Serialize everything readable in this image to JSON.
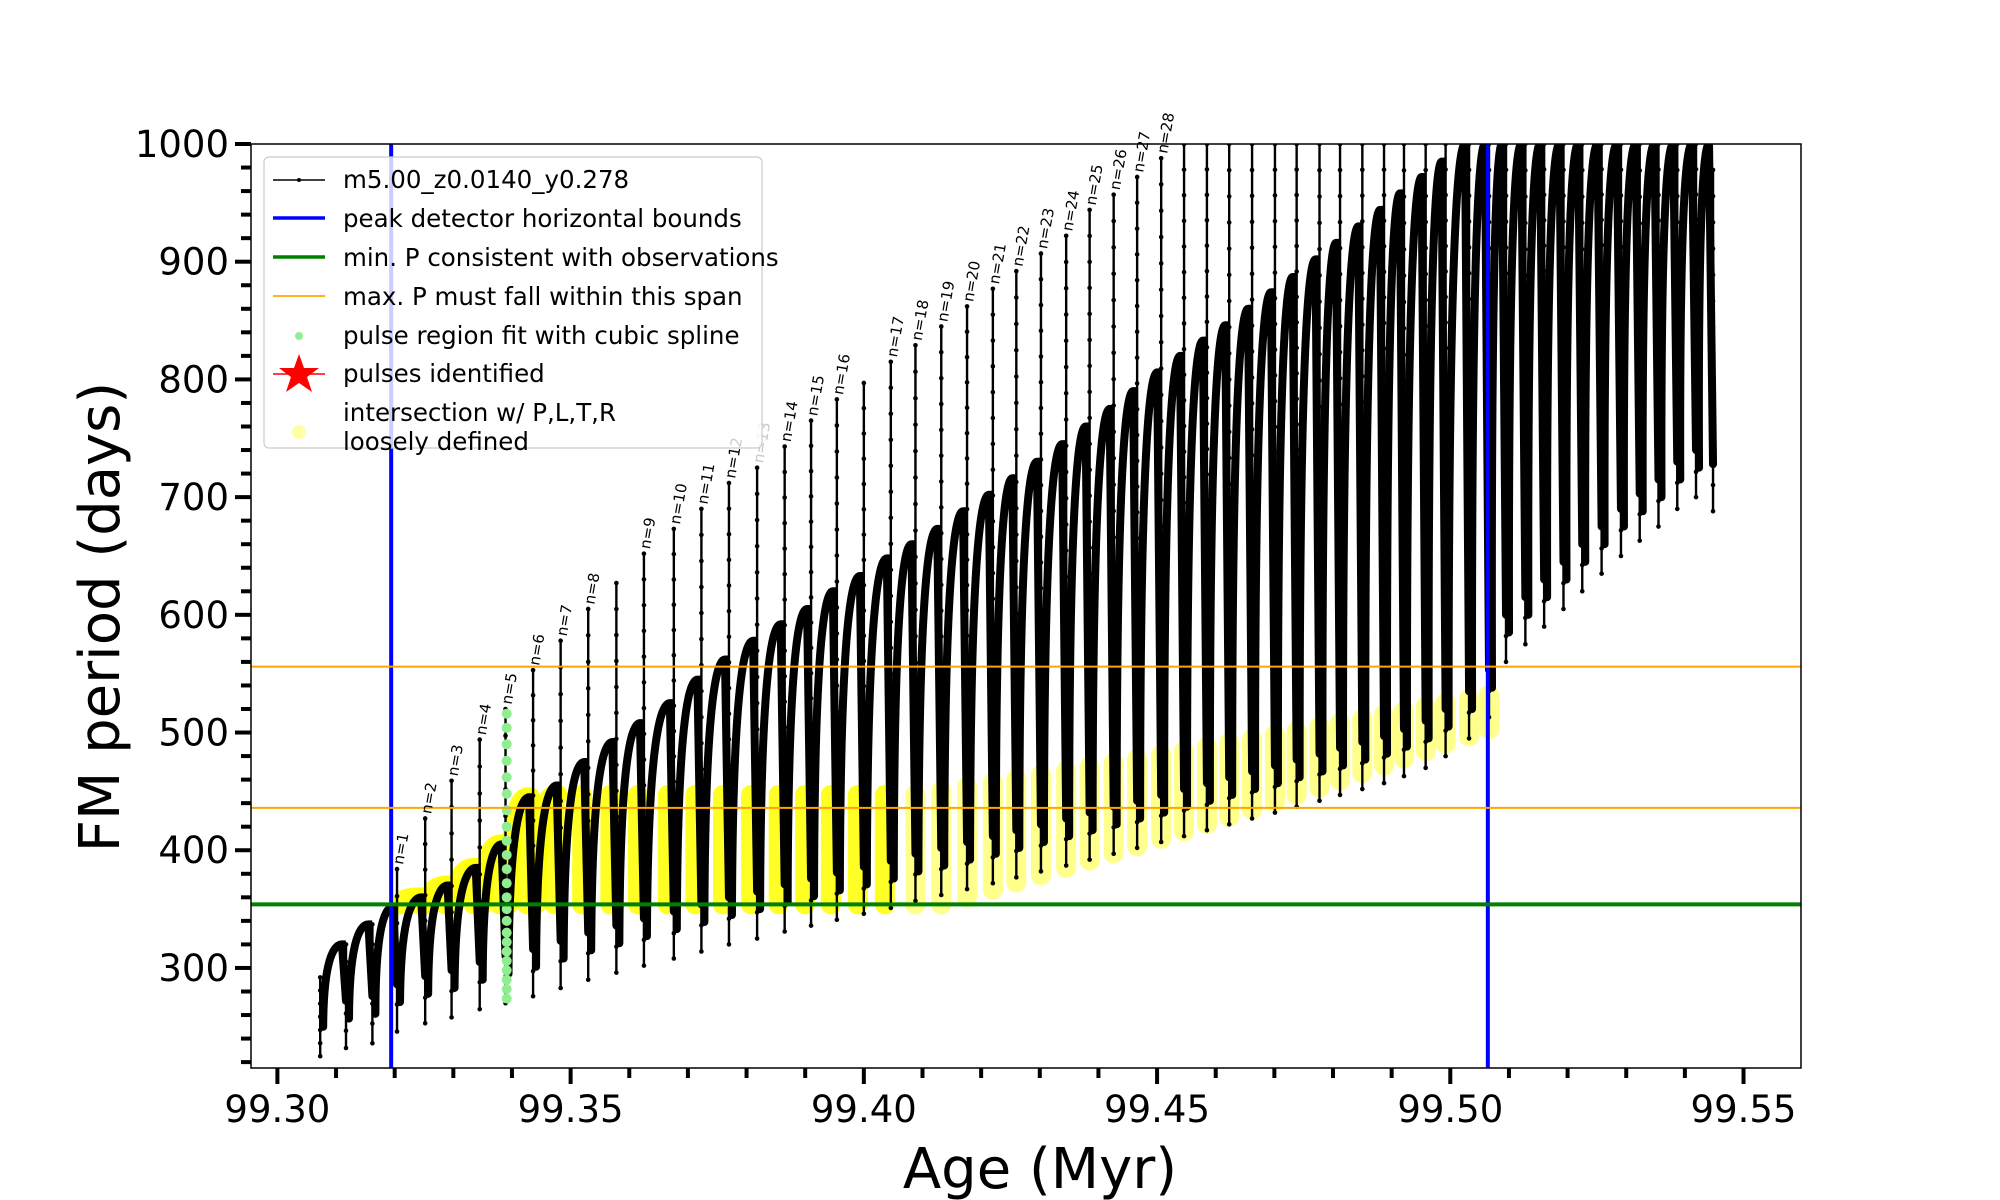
{
  "chart_data": {
    "type": "line",
    "title": "",
    "xlabel": "Age (Myr)",
    "ylabel": "FM period (days)",
    "xlim": [
      99.2955,
      99.5598
    ],
    "ylim": [
      215,
      1000
    ],
    "xticks": [
      "99.30",
      "99.35",
      "99.40",
      "99.45",
      "99.50",
      "99.55"
    ],
    "xtick_values": [
      99.3,
      99.35,
      99.4,
      99.45,
      99.5,
      99.55
    ],
    "yticks": [
      "300",
      "400",
      "500",
      "600",
      "700",
      "800",
      "900",
      "1000"
    ],
    "ytick_values": [
      300,
      400,
      500,
      600,
      700,
      800,
      900,
      1000
    ],
    "x_minor_step": 0.01,
    "y_minor_step": 20,
    "grid": false,
    "legend_placement": "upper-left",
    "legend": [
      {
        "label": "m5.00_z0.0140_y0.278",
        "kind": "line-marker",
        "color": "#000000"
      },
      {
        "label": "peak detector horizontal bounds",
        "kind": "line",
        "color": "#0000ff"
      },
      {
        "label": "min. P consistent with observations",
        "kind": "line",
        "color": "#008000"
      },
      {
        "label": "max. P must fall within this span",
        "kind": "line",
        "color": "#ffa500"
      },
      {
        "label": "pulse region fit with cubic spline",
        "kind": "dot",
        "color": "#90ee90"
      },
      {
        "label": "pulses identified",
        "kind": "star",
        "color": "#ff0000"
      },
      {
        "label": "intersection w/ P,L,T,R",
        "label2": "loosely defined",
        "kind": "circle",
        "color": "#ffff66"
      }
    ],
    "reference_lines": {
      "peak_detector_bounds_age": [
        99.3194,
        99.5064
      ],
      "min_P": 354,
      "max_P_span": [
        436,
        556
      ]
    },
    "colors": {
      "track": "#000000",
      "bounds": "#0000ff",
      "minP": "#008000",
      "maxP": "#ffa500",
      "spline": "#90ee90",
      "intersection": "#ffff00"
    },
    "series": [
      {
        "name": "m5.00_z0.0140_y0.278",
        "description_fields": [
          "age",
          "spike_min_P",
          "spike_peak_P",
          "hump_max_P",
          "label"
        ],
        "start": {
          "age": 99.3073,
          "P": 292
        },
        "cycles": [
          [
            99.3073,
            225,
            292,
            292,
            ""
          ],
          [
            99.3117,
            232,
            320,
            320,
            ""
          ],
          [
            99.3162,
            236,
            337,
            337,
            ""
          ],
          [
            99.3204,
            246,
            384,
            352,
            "n=1"
          ],
          [
            99.3252,
            253,
            427,
            360,
            "n=2"
          ],
          [
            99.3297,
            258,
            459,
            370,
            "n=3"
          ],
          [
            99.3345,
            265,
            494,
            385,
            "n=4"
          ],
          [
            99.3389,
            270,
            520,
            405,
            "n=5"
          ],
          [
            99.3436,
            276,
            553,
            445,
            "n=6"
          ],
          [
            99.3483,
            283,
            578,
            455,
            "n=7"
          ],
          [
            99.353,
            290,
            605,
            475,
            "n=8"
          ],
          [
            99.3578,
            296,
            627,
            492,
            ""
          ],
          [
            99.3625,
            302,
            652,
            508,
            "n=9"
          ],
          [
            99.3676,
            308,
            673,
            525,
            "n=10"
          ],
          [
            99.3723,
            314,
            690,
            545,
            "n=11"
          ],
          [
            99.377,
            320,
            712,
            562,
            "n=12"
          ],
          [
            99.3818,
            325,
            725,
            578,
            "n=13"
          ],
          [
            99.3865,
            331,
            743,
            592,
            "n=14"
          ],
          [
            99.391,
            336,
            765,
            605,
            "n=15"
          ],
          [
            99.3954,
            341,
            783,
            620,
            "n=16"
          ],
          [
            99.4,
            346,
            797,
            633,
            ""
          ],
          [
            99.4046,
            351,
            815,
            648,
            "n=17"
          ],
          [
            99.4088,
            357,
            829,
            660,
            "n=18"
          ],
          [
            99.4132,
            362,
            845,
            673,
            "n=19"
          ],
          [
            99.4176,
            367,
            862,
            688,
            "n=20"
          ],
          [
            99.422,
            372,
            877,
            702,
            "n=21"
          ],
          [
            99.426,
            377,
            892,
            716,
            "n=22"
          ],
          [
            99.4302,
            382,
            907,
            730,
            "n=23"
          ],
          [
            99.4345,
            387,
            922,
            745,
            "n=24"
          ],
          [
            99.4385,
            392,
            944,
            760,
            "n=25"
          ],
          [
            99.4426,
            397,
            957,
            775,
            "n=26"
          ],
          [
            99.4466,
            402,
            972,
            790,
            "n=27"
          ],
          [
            99.4507,
            407,
            988,
            806,
            "n=28"
          ],
          [
            99.4546,
            412,
            1000,
            820,
            ""
          ],
          [
            99.4585,
            417,
            1000,
            833,
            ""
          ],
          [
            99.4623,
            422,
            1000,
            846,
            ""
          ],
          [
            99.4662,
            427,
            1000,
            860,
            ""
          ],
          [
            99.4701,
            432,
            1000,
            874,
            ""
          ],
          [
            99.4738,
            437,
            1000,
            887,
            ""
          ],
          [
            99.4777,
            442,
            1000,
            902,
            ""
          ],
          [
            99.4812,
            447,
            1000,
            916,
            ""
          ],
          [
            99.485,
            452,
            1000,
            930,
            ""
          ],
          [
            99.4887,
            457,
            1000,
            944,
            ""
          ],
          [
            99.4921,
            463,
            1000,
            958,
            ""
          ],
          [
            99.4958,
            470,
            1000,
            972,
            ""
          ],
          [
            99.4992,
            480,
            1000,
            985,
            ""
          ],
          [
            99.5032,
            495,
            1000,
            1000,
            ""
          ],
          [
            99.5066,
            513,
            1000,
            1000,
            ""
          ],
          [
            99.5095,
            560,
            1000,
            1000,
            ""
          ],
          [
            99.5128,
            575,
            1000,
            1000,
            ""
          ],
          [
            99.516,
            590,
            1000,
            1000,
            ""
          ],
          [
            99.5193,
            605,
            1000,
            1000,
            ""
          ],
          [
            99.5225,
            620,
            1000,
            1000,
            ""
          ],
          [
            99.5258,
            635,
            1000,
            1000,
            ""
          ],
          [
            99.5291,
            650,
            1000,
            1000,
            ""
          ],
          [
            99.5323,
            663,
            1000,
            1000,
            ""
          ],
          [
            99.5355,
            675,
            1000,
            1000,
            ""
          ],
          [
            99.5387,
            690,
            1000,
            1000,
            ""
          ],
          [
            99.5419,
            700,
            1000,
            1000,
            ""
          ],
          [
            99.5448,
            688,
            978,
            1000,
            ""
          ]
        ]
      }
    ],
    "spline_fit_points": {
      "age": 99.3391,
      "P": [
        274,
        282,
        290,
        298,
        306,
        314,
        322,
        330,
        340,
        350,
        360,
        372,
        384,
        396,
        408,
        420,
        434,
        448,
        462,
        476,
        490,
        504,
        516
      ]
    },
    "intersection_region": {
      "min_P": 354,
      "note_cycles_from": 1,
      "note_cycles_to": 46
    }
  }
}
